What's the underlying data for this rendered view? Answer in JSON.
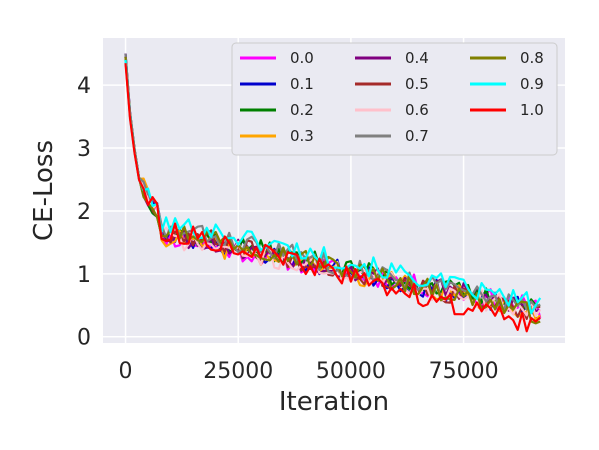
{
  "chart_data": {
    "type": "line",
    "xlabel": "Iteration",
    "ylabel": "CE-Loss",
    "xlim": [
      -5000,
      97500
    ],
    "ylim": [
      -0.1,
      4.75
    ],
    "x_ticks": [
      0,
      25000,
      50000,
      75000
    ],
    "x_tick_labels": [
      "0",
      "25000",
      "50000",
      "75000"
    ],
    "y_ticks": [
      0,
      1,
      2,
      3,
      4
    ],
    "y_tick_labels": [
      "0",
      "1",
      "2",
      "3",
      "4"
    ],
    "grid": true,
    "legend_position": "top-right",
    "legend_columns": 3,
    "x_start": 0,
    "x_step": 1000,
    "points_per_series": 93,
    "series": [
      {
        "name": "0.0",
        "color": "#ff00ff",
        "start": 4.45,
        "mid": 1.45,
        "end": 0.45,
        "seed": 11
      },
      {
        "name": "0.1",
        "color": "#0000cc",
        "start": 4.5,
        "mid": 1.5,
        "end": 0.4,
        "seed": 23
      },
      {
        "name": "0.2",
        "color": "#008000",
        "start": 4.4,
        "mid": 1.55,
        "end": 0.45,
        "seed": 37
      },
      {
        "name": "0.3",
        "color": "#ffa500",
        "start": 4.45,
        "mid": 1.45,
        "end": 0.4,
        "seed": 41
      },
      {
        "name": "0.4",
        "color": "#800080",
        "start": 4.5,
        "mid": 1.5,
        "end": 0.45,
        "seed": 53
      },
      {
        "name": "0.5",
        "color": "#a52a2a",
        "start": 4.45,
        "mid": 1.55,
        "end": 0.35,
        "seed": 67
      },
      {
        "name": "0.6",
        "color": "#ffc0cb",
        "start": 4.4,
        "mid": 1.45,
        "end": 0.4,
        "seed": 71
      },
      {
        "name": "0.7",
        "color": "#808080",
        "start": 4.5,
        "mid": 1.6,
        "end": 0.45,
        "seed": 83
      },
      {
        "name": "0.8",
        "color": "#808000",
        "start": 4.45,
        "mid": 1.6,
        "end": 0.35,
        "seed": 97
      },
      {
        "name": "0.9",
        "color": "#00ffff",
        "start": 4.4,
        "mid": 1.7,
        "end": 0.5,
        "seed": 101
      },
      {
        "name": "1.0",
        "color": "#ff0000",
        "start": 4.35,
        "mid": 1.55,
        "end": 0.15,
        "seed": 113
      }
    ]
  }
}
